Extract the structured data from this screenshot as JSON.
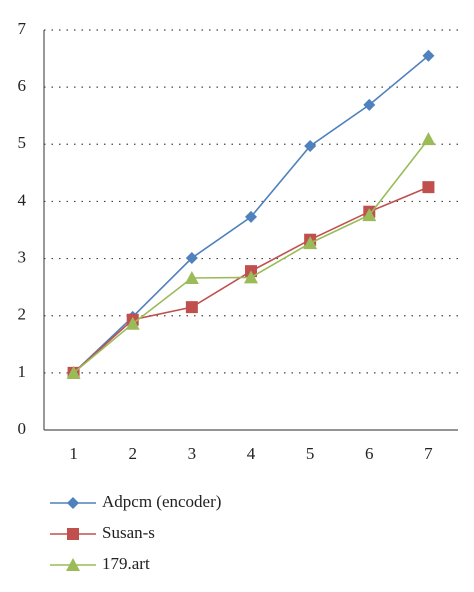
{
  "chart_data": {
    "type": "line",
    "x": [
      1,
      2,
      3,
      4,
      5,
      6,
      7
    ],
    "xlim": [
      0.5,
      7.5
    ],
    "xticks": [
      1,
      2,
      3,
      4,
      5,
      6,
      7
    ],
    "ylim": [
      0,
      7
    ],
    "yticks": [
      0,
      1,
      2,
      3,
      4,
      5,
      6,
      7
    ],
    "grid": true,
    "series": [
      {
        "name": "Adpcm (encoder)",
        "color": "#4f81bd",
        "marker": "diamond",
        "values": [
          1,
          1.98,
          3.01,
          3.73,
          4.97,
          5.69,
          6.55
        ]
      },
      {
        "name": "Susan-s",
        "color": "#c0504d",
        "marker": "square",
        "values": [
          1,
          1.93,
          2.15,
          2.78,
          3.33,
          3.82,
          4.25
        ]
      },
      {
        "name": "179.art",
        "color": "#9bbb59",
        "marker": "triangle",
        "values": [
          1,
          1.86,
          2.66,
          2.67,
          3.27,
          3.76,
          5.09
        ]
      }
    ]
  }
}
